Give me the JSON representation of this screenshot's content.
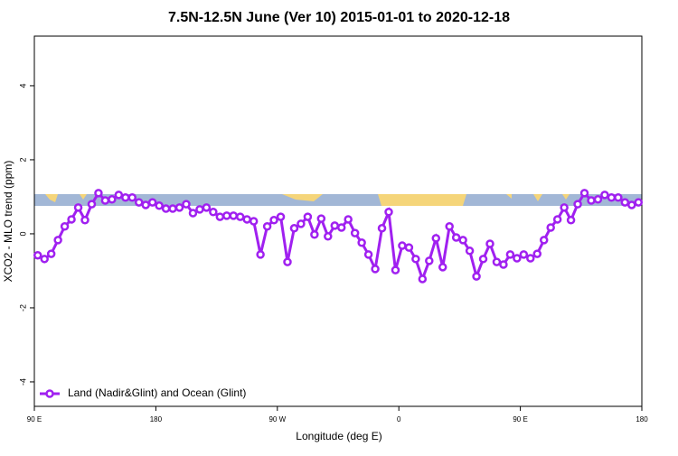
{
  "chart_data": {
    "type": "line",
    "title": "7.5N-12.5N June (Ver 10)   2015-01-01 to 2020-12-18",
    "x_label": "Longitude (deg E)",
    "y_label": "XCO2 - MLO trend (ppm)",
    "xlim": [
      90,
      540
    ],
    "xticks": [
      {
        "value": 90,
        "label": "90 E"
      },
      {
        "value": 180,
        "label": "180"
      },
      {
        "value": 270,
        "label": "90 W"
      },
      {
        "value": 360,
        "label": "0"
      },
      {
        "value": 450,
        "label": "90 E"
      },
      {
        "value": 540,
        "label": "180"
      }
    ],
    "ylim": [
      -4.66,
      5.34
    ],
    "yticks": [
      -4,
      -2,
      0,
      2,
      4
    ],
    "legend": "bottom-left",
    "x": [
      92.5,
      97.5,
      102.5,
      107.5,
      112.5,
      117.5,
      122.5,
      127.5,
      132.5,
      137.5,
      142.5,
      147.5,
      152.5,
      157.5,
      162.5,
      167.5,
      172.5,
      177.5,
      182.5,
      187.5,
      192.5,
      197.5,
      202.5,
      207.5,
      212.5,
      217.5,
      222.5,
      227.5,
      232.5,
      237.5,
      242.5,
      247.5,
      252.5,
      257.5,
      262.5,
      267.5,
      272.5,
      277.5,
      282.5,
      287.5,
      292.5,
      297.5,
      302.5,
      307.5,
      312.5,
      317.5,
      322.5,
      327.5,
      332.5,
      337.5,
      342.5,
      347.5,
      352.5,
      357.5,
      362.5,
      367.5,
      372.5,
      377.5,
      382.5,
      387.5,
      392.5,
      397.5,
      402.5,
      407.5,
      412.5,
      417.5,
      422.5,
      427.5,
      432.5,
      437.5,
      442.5,
      447.5,
      452.5,
      457.5,
      462.5,
      467.5,
      472.5,
      477.5,
      482.5,
      487.5,
      492.5,
      497.5,
      502.5,
      507.5,
      512.5,
      517.5,
      522.5,
      527.5,
      532.5,
      537.5
    ],
    "series": [
      {
        "name": "Land (Nadir&Glint) and Ocean (Glint)",
        "color": "#a020f0",
        "values": [
          -0.58,
          -0.68,
          -0.54,
          -0.17,
          0.2,
          0.39,
          0.71,
          0.37,
          0.8,
          1.1,
          0.9,
          0.93,
          1.05,
          0.98,
          0.98,
          0.85,
          0.78,
          0.85,
          0.76,
          0.68,
          0.68,
          0.71,
          0.8,
          0.56,
          0.66,
          0.71,
          0.59,
          0.46,
          0.49,
          0.49,
          0.46,
          0.39,
          0.34,
          -0.56,
          0.2,
          0.37,
          0.46,
          -0.76,
          0.15,
          0.27,
          0.46,
          -0.02,
          0.41,
          -0.07,
          0.22,
          0.17,
          0.39,
          0.02,
          -0.24,
          -0.56,
          -0.95,
          0.15,
          0.59,
          -0.98,
          -0.32,
          -0.37,
          -0.68,
          -1.22,
          -0.73,
          -0.12,
          -0.9,
          0.2,
          -0.1,
          -0.17,
          -0.46,
          -1.15,
          -0.68,
          -0.27,
          -0.76,
          -0.83,
          -0.56,
          -0.66,
          -0.56,
          -0.66,
          -0.54,
          -0.17,
          0.17,
          0.39,
          0.71,
          0.37,
          0.8,
          1.1,
          0.9,
          0.93,
          1.05,
          0.98,
          0.98,
          0.85,
          0.78,
          0.85
        ]
      }
    ]
  }
}
